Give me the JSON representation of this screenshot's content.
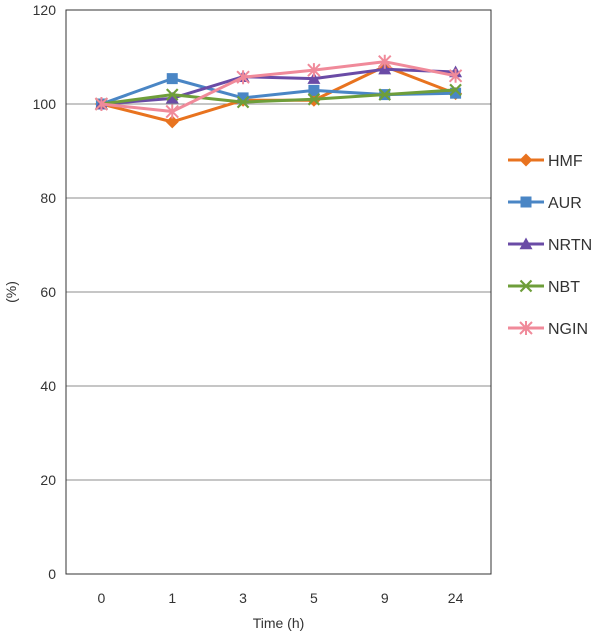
{
  "chart_data": {
    "type": "line",
    "title": "",
    "xlabel": "Time (h)",
    "ylabel": "(%)",
    "categories": [
      "0",
      "1",
      "3",
      "5",
      "9",
      "24"
    ],
    "ylim": [
      0,
      120
    ],
    "yticks": [
      0,
      20,
      40,
      60,
      80,
      100,
      120
    ],
    "grid": true,
    "legend_position": "right",
    "series": [
      {
        "name": "HMF",
        "color": "#E8731F",
        "marker": "diamond",
        "values": [
          100,
          96.2,
          100.8,
          100.8,
          108.0,
          102.2
        ]
      },
      {
        "name": "AUR",
        "color": "#4A86C5",
        "marker": "square",
        "values": [
          100,
          105.4,
          101.3,
          102.9,
          102.0,
          102.3
        ]
      },
      {
        "name": "NRTN",
        "color": "#6A4BA6",
        "marker": "triangle",
        "values": [
          100,
          101.2,
          105.8,
          105.4,
          107.4,
          106.8
        ]
      },
      {
        "name": "NBT",
        "color": "#6E9E3A",
        "marker": "x",
        "values": [
          100,
          102.0,
          100.4,
          101.0,
          102.0,
          103.0
        ]
      },
      {
        "name": "NGIN",
        "color": "#F08A9A",
        "marker": "asterisk",
        "values": [
          100,
          98.4,
          105.7,
          107.2,
          109.0,
          106.0
        ]
      }
    ]
  }
}
